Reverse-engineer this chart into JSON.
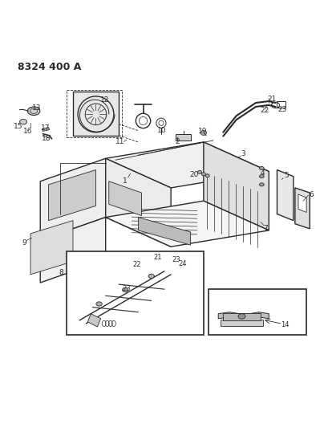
{
  "title": "8324 400 A",
  "bg_color": "#ffffff",
  "line_color": "#2a2a2a",
  "fig_width": 4.1,
  "fig_height": 5.33,
  "dpi": 100
}
